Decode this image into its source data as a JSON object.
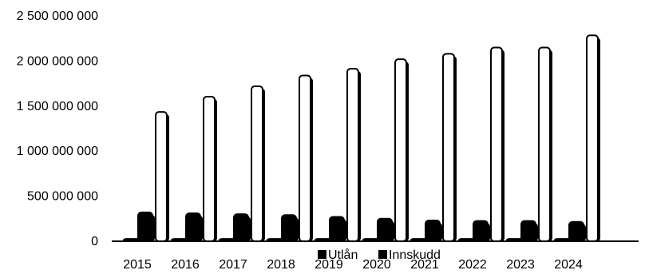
{
  "chart_data": {
    "type": "bar",
    "title": "",
    "xlabel": "",
    "ylabel": "",
    "ylim": [
      0,
      2500000000
    ],
    "categories": [
      "2015",
      "2016",
      "2017",
      "2018",
      "2019",
      "2020",
      "2021",
      "2022",
      "2023",
      "2024"
    ],
    "yticks": [
      "0",
      "500 000 000",
      "1 000 000 000",
      "1 500 000 000",
      "2 000 000 000",
      "2 500 000 000"
    ],
    "yticks_values": [
      0,
      500000000,
      1000000000,
      1500000000,
      2000000000,
      2500000000
    ],
    "series": [
      {
        "values": [
          25000000,
          25000000,
          25000000,
          25000000,
          25000000,
          25000000,
          25000000,
          25000000,
          25000000,
          25000000
        ],
        "color": "#000000"
      },
      {
        "values": [
          320000000,
          310000000,
          300000000,
          290000000,
          270000000,
          250000000,
          230000000,
          225000000,
          225000000,
          215000000
        ],
        "color": "#000000"
      },
      {
        "name": "Utlån",
        "values": [
          1435000000,
          1605000000,
          1720000000,
          1840000000,
          1915000000,
          2020000000,
          2080000000,
          2150000000,
          2150000000,
          2285000000
        ],
        "color": "#ffffff"
      },
      {
        "name": "Innskudd",
        "values": [
          0,
          0,
          0,
          0,
          0,
          0,
          0,
          0,
          0,
          0
        ],
        "color": "#000000"
      }
    ],
    "legend": {
      "position": "bottom-center",
      "items": [
        {
          "label": "Utlån",
          "color": "#000000"
        },
        {
          "label": "Innskudd",
          "color": "#000000"
        }
      ]
    },
    "grid": false
  }
}
